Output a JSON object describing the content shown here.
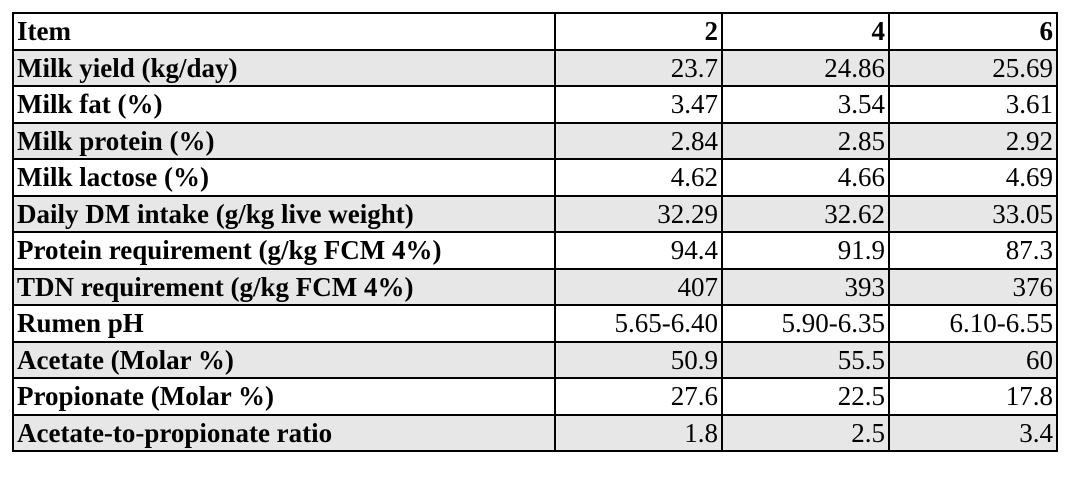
{
  "table": {
    "header": [
      "Item",
      "2",
      "4",
      "6"
    ],
    "rows": [
      [
        "Milk yield (kg/day)",
        "23.7",
        "24.86",
        "25.69"
      ],
      [
        "Milk fat (%)",
        "3.47",
        "3.54",
        "3.61"
      ],
      [
        "Milk protein (%)",
        "2.84",
        "2.85",
        "2.92"
      ],
      [
        "Milk lactose (%)",
        "4.62",
        "4.66",
        "4.69"
      ],
      [
        "Daily DM intake (g/kg live weight)",
        "32.29",
        "32.62",
        "33.05"
      ],
      [
        "Protein requirement (g/kg FCM 4%)",
        "94.4",
        "91.9",
        "87.3"
      ],
      [
        "TDN requirement (g/kg FCM 4%)",
        "407",
        "393",
        "376"
      ],
      [
        "Rumen pH",
        "5.65-6.40",
        "5.90-6.35",
        "6.10-6.55"
      ],
      [
        "Acetate (Molar %)",
        "50.9",
        "55.5",
        "60"
      ],
      [
        "Propionate (Molar %)",
        "27.6",
        "22.5",
        "17.8"
      ],
      [
        "Acetate-to-propionate ratio",
        "1.8",
        "2.5",
        "3.4"
      ]
    ],
    "shaded_row_color": "#e7e7e7"
  }
}
